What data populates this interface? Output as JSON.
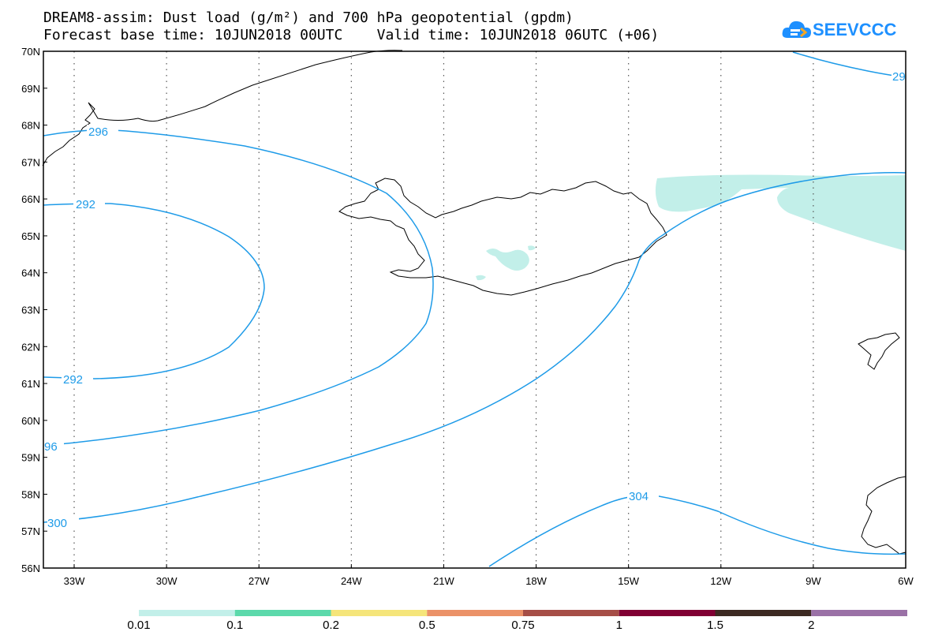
{
  "title": {
    "line1": "DREAM8-assim: Dust load (g/m²) and 700 hPa geopotential (gpdm)",
    "line2": "Forecast base time: 10JUN2018 00UTC    Valid time: 10JUN2018 06UTC (+06)"
  },
  "logo": {
    "text": "SEEVCCC",
    "icon": "cloud-icon",
    "color": "#1e90ff"
  },
  "map": {
    "region": "Iceland and North Atlantic",
    "lat_labels": [
      "70N",
      "69N",
      "68N",
      "67N",
      "66N",
      "65N",
      "64N",
      "63N",
      "62N",
      "61N",
      "60N",
      "59N",
      "58N",
      "57N",
      "56N"
    ],
    "lon_labels": [
      "33W",
      "30W",
      "27W",
      "24W",
      "21W",
      "18W",
      "15W",
      "12W",
      "9W",
      "6W"
    ],
    "contour_color": "#1e9be8",
    "dust_color": "#c2efe9",
    "contour_labels": [
      {
        "id": "c296a",
        "text": "296"
      },
      {
        "id": "c292a",
        "text": "292"
      },
      {
        "id": "c292b",
        "text": "292"
      },
      {
        "id": "c96",
        "text": "96"
      },
      {
        "id": "c300",
        "text": "300"
      },
      {
        "id": "c304",
        "text": "304"
      },
      {
        "id": "c29",
        "text": "29"
      }
    ]
  },
  "legend": {
    "labels": [
      "0.01",
      "0.1",
      "0.2",
      "0.5",
      "0.75",
      "1",
      "1.5",
      "2"
    ],
    "colors": [
      "#c2efe9",
      "#5cd9ab",
      "#f5e57a",
      "#eb9268",
      "#a64e47",
      "#800033",
      "#3d2a22",
      "#9a71a6"
    ]
  }
}
